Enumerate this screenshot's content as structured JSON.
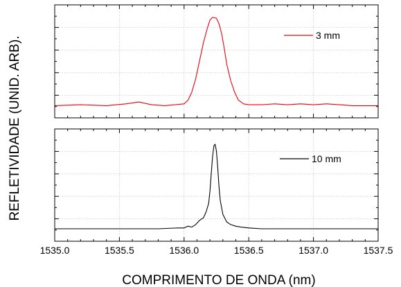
{
  "chart_data": {
    "type": "line",
    "xlabel": "COMPRIMENTO DE ONDA (nm)",
    "ylabel": "REFLETIVIDADE (UNID. ARB).",
    "xlim": [
      1535.0,
      1537.5
    ],
    "x_ticks": [
      "1535.0",
      "1535.5",
      "1536.0",
      "1536.5",
      "1537.0",
      "1537.5"
    ],
    "grid": true,
    "panels": [
      {
        "series": [
          {
            "name": "3 mm",
            "color": "#e8000b",
            "x": [
              1535.0,
              1535.2,
              1535.4,
              1535.55,
              1535.65,
              1535.75,
              1535.85,
              1535.93,
              1536.0,
              1536.03,
              1536.06,
              1536.09,
              1536.12,
              1536.15,
              1536.18,
              1536.2,
              1536.22,
              1536.25,
              1536.27,
              1536.29,
              1536.31,
              1536.33,
              1536.36,
              1536.39,
              1536.42,
              1536.46,
              1536.5,
              1536.6,
              1536.7,
              1536.8,
              1536.9,
              1537.0,
              1537.1,
              1537.2,
              1537.3,
              1537.5
            ],
            "y": [
              0.02,
              0.03,
              0.02,
              0.04,
              0.06,
              0.03,
              0.02,
              0.03,
              0.04,
              0.08,
              0.17,
              0.32,
              0.52,
              0.72,
              0.88,
              0.97,
              1.0,
              0.99,
              0.93,
              0.82,
              0.66,
              0.48,
              0.3,
              0.17,
              0.08,
              0.04,
              0.03,
              0.03,
              0.04,
              0.03,
              0.04,
              0.03,
              0.04,
              0.03,
              0.02,
              0.02
            ]
          }
        ]
      },
      {
        "series": [
          {
            "name": "10 mm",
            "color": "#000000",
            "x": [
              1535.0,
              1535.3,
              1535.6,
              1535.8,
              1535.95,
              1536.0,
              1536.03,
              1536.06,
              1536.09,
              1536.12,
              1536.15,
              1536.17,
              1536.19,
              1536.2,
              1536.21,
              1536.22,
              1536.23,
              1536.24,
              1536.25,
              1536.26,
              1536.27,
              1536.28,
              1536.3,
              1536.33,
              1536.36,
              1536.4,
              1536.44,
              1536.5,
              1536.6,
              1536.8,
              1537.0,
              1537.2,
              1537.5
            ],
            "y": [
              0.0,
              0.0,
              0.0,
              0.0,
              0.01,
              0.01,
              0.03,
              0.02,
              0.05,
              0.1,
              0.13,
              0.2,
              0.3,
              0.45,
              0.65,
              0.85,
              0.98,
              1.0,
              0.92,
              0.72,
              0.5,
              0.33,
              0.17,
              0.08,
              0.05,
              0.03,
              0.02,
              0.01,
              0.0,
              0.0,
              0.0,
              0.0,
              0.0
            ]
          }
        ]
      }
    ]
  }
}
